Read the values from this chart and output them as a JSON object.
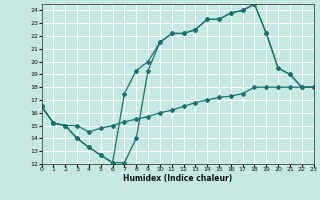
{
  "xlabel": "Humidex (Indice chaleur)",
  "bg_color": "#c5e8e2",
  "grid_color": "#ffffff",
  "line_color": "#1a7070",
  "xlim": [
    0,
    23
  ],
  "ylim": [
    12,
    24.5
  ],
  "yticks": [
    12,
    13,
    14,
    15,
    16,
    17,
    18,
    19,
    20,
    21,
    22,
    23,
    24
  ],
  "xticks": [
    0,
    1,
    2,
    3,
    4,
    5,
    6,
    7,
    8,
    9,
    10,
    11,
    12,
    13,
    14,
    15,
    16,
    17,
    18,
    19,
    20,
    21,
    22,
    23
  ],
  "line1_x": [
    0,
    1,
    2,
    3,
    4,
    5,
    6,
    7,
    8,
    9,
    10,
    11,
    12,
    13,
    14,
    15,
    16,
    17,
    18,
    19,
    20,
    21,
    22,
    23
  ],
  "line1_y": [
    16.5,
    15.2,
    15.0,
    14.0,
    13.3,
    12.7,
    12.1,
    12.1,
    14.0,
    19.3,
    21.5,
    22.2,
    22.2,
    22.5,
    23.3,
    23.3,
    23.8,
    24.0,
    24.5,
    22.2,
    19.5,
    19.0,
    18.0,
    18.0
  ],
  "line2_x": [
    0,
    1,
    2,
    3,
    4,
    5,
    6,
    7,
    8,
    9,
    10,
    11,
    12,
    13,
    14,
    15,
    16,
    17,
    18,
    19,
    20,
    21,
    22,
    23
  ],
  "line2_y": [
    16.5,
    15.2,
    15.0,
    14.0,
    13.3,
    12.7,
    12.1,
    17.5,
    19.3,
    20.0,
    21.5,
    22.2,
    22.2,
    22.5,
    23.3,
    23.3,
    23.8,
    24.0,
    24.5,
    22.2,
    19.5,
    19.0,
    18.0,
    18.0
  ],
  "line3_x": [
    0,
    1,
    2,
    3,
    4,
    5,
    6,
    7,
    8,
    9,
    10,
    11,
    12,
    13,
    14,
    15,
    16,
    17,
    18,
    19,
    20,
    21,
    22,
    23
  ],
  "line3_y": [
    16.5,
    15.2,
    15.0,
    15.0,
    14.5,
    14.8,
    15.0,
    15.3,
    15.5,
    15.7,
    16.0,
    16.2,
    16.5,
    16.8,
    17.0,
    17.2,
    17.3,
    17.5,
    18.0,
    18.0,
    18.0,
    18.0,
    18.0,
    18.0
  ]
}
